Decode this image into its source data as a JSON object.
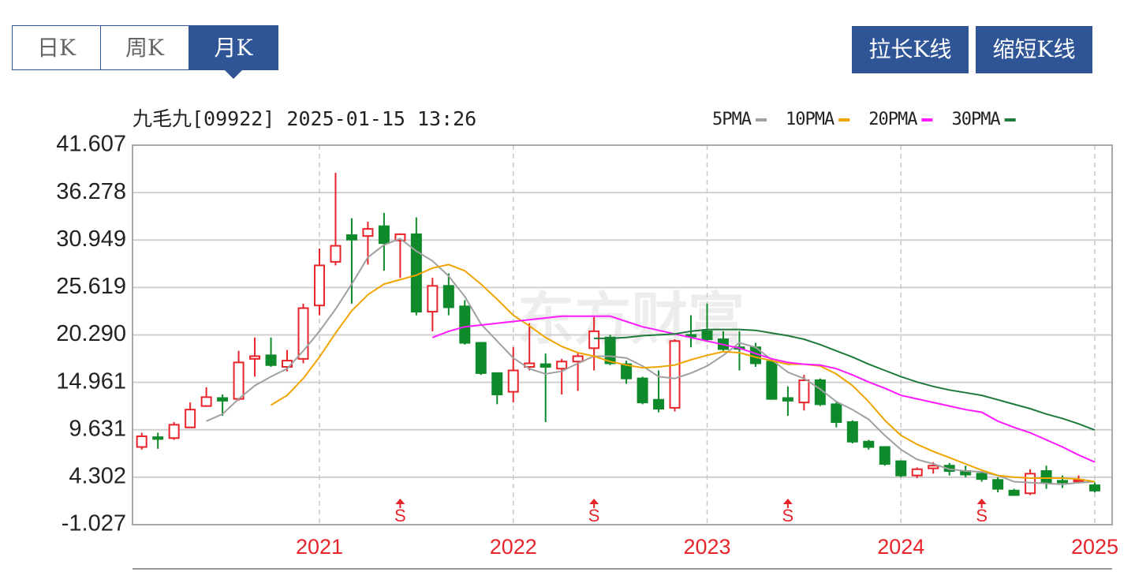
{
  "tabs": [
    "日K",
    "周K",
    "月K"
  ],
  "active_tab": 2,
  "buttons": [
    "拉长K线",
    "缩短K线"
  ],
  "chart_data": {
    "type": "candlestick",
    "title": "九毛九[09922] 2025-01-15 13:26",
    "watermark": "东方财富",
    "categories": [
      null,
      null,
      null,
      null,
      null,
      null,
      null,
      null,
      null,
      null,
      null,
      "2021",
      null,
      null,
      null,
      null,
      null,
      null,
      null,
      null,
      null,
      null,
      null,
      "2022",
      null,
      null,
      null,
      null,
      null,
      null,
      null,
      null,
      null,
      null,
      null,
      "2023",
      null,
      null,
      null,
      null,
      null,
      null,
      null,
      null,
      null,
      null,
      null,
      "2024",
      null,
      null,
      null,
      null,
      null,
      null,
      null,
      null,
      null,
      null,
      null,
      "2025"
    ],
    "open": [
      7.7,
      8.8,
      8.7,
      9.9,
      12.3,
      13.2,
      13.1,
      17.6,
      18.0,
      16.7,
      17.6,
      23.6,
      28.5,
      31.5,
      31.4,
      32.5,
      30.9,
      31.6,
      22.9,
      25.8,
      23.5,
      19.4,
      16.0,
      13.9,
      16.7,
      17.0,
      16.5,
      17.3,
      18.8,
      20.0,
      17.0,
      15.4,
      13.0,
      12.1,
      20.3,
      20.7,
      19.8,
      18.9,
      18.9,
      17.3,
      13.2,
      12.7,
      15.2,
      12.5,
      10.5,
      8.3,
      7.7,
      6.1,
      4.5,
      5.3,
      5.6,
      5.0,
      4.7,
      4.0,
      2.8,
      2.5,
      5.0,
      3.9,
      3.9,
      3.4
    ],
    "high": [
      9.3,
      9.3,
      10.5,
      12.7,
      14.4,
      13.6,
      18.5,
      20.0,
      20.0,
      18.6,
      23.8,
      30.0,
      38.5,
      33.4,
      33.0,
      34.0,
      31.7,
      33.5,
      26.7,
      27.2,
      24.2,
      19.5,
      16.0,
      18.9,
      21.6,
      18.2,
      17.6,
      18.2,
      22.3,
      20.3,
      17.4,
      15.6,
      16.3,
      19.8,
      22.5,
      23.8,
      20.7,
      20.7,
      19.4,
      17.5,
      14.5,
      15.8,
      15.4,
      12.9,
      10.7,
      8.5,
      7.8,
      6.2,
      5.4,
      6.0,
      5.9,
      5.6,
      4.9,
      4.3,
      3.0,
      5.2,
      5.6,
      4.5,
      4.5,
      3.7
    ],
    "low": [
      7.4,
      7.5,
      8.5,
      9.9,
      12.2,
      11.2,
      12.9,
      15.6,
      16.7,
      16.2,
      17.1,
      22.5,
      28.1,
      23.8,
      28.2,
      27.5,
      26.7,
      22.5,
      20.7,
      22.5,
      19.2,
      15.8,
      12.5,
      12.7,
      16.3,
      10.5,
      13.6,
      14.0,
      16.3,
      16.9,
      14.8,
      12.5,
      11.6,
      11.7,
      18.9,
      19.6,
      18.5,
      16.3,
      16.7,
      13.0,
      11.2,
      11.8,
      12.3,
      9.9,
      8.1,
      7.4,
      5.6,
      4.3,
      4.2,
      4.7,
      4.5,
      4.3,
      3.8,
      2.6,
      2.2,
      2.3,
      3.0,
      3.1,
      3.6,
      2.6
    ],
    "close": [
      8.9,
      8.6,
      10.2,
      11.9,
      13.3,
      12.9,
      17.2,
      17.9,
      16.9,
      17.4,
      23.3,
      28.1,
      30.3,
      31.0,
      32.2,
      30.6,
      31.6,
      22.9,
      25.8,
      23.4,
      19.4,
      16.0,
      13.6,
      16.3,
      17.1,
      16.7,
      17.3,
      17.9,
      20.7,
      17.1,
      15.4,
      12.7,
      12.0,
      19.6,
      20.1,
      19.8,
      18.7,
      18.8,
      17.1,
      13.1,
      12.9,
      15.2,
      12.5,
      10.5,
      8.3,
      7.7,
      5.8,
      4.5,
      5.2,
      5.6,
      5.0,
      4.6,
      4.1,
      3.0,
      2.3,
      4.7,
      3.7,
      3.8,
      4.0,
      2.8
    ],
    "up_color": "#e8242b",
    "down_color": "#0e8a2a",
    "series": [
      {
        "name": "5PMA",
        "color": "#a0a0a0",
        "values": [
          null,
          null,
          null,
          null,
          10.6,
          11.4,
          13.1,
          14.6,
          15.6,
          16.5,
          18.5,
          20.7,
          23.2,
          26.0,
          29.0,
          30.4,
          31.1,
          29.7,
          28.6,
          26.9,
          24.6,
          21.5,
          19.6,
          17.7,
          16.5,
          15.9,
          16.2,
          17.1,
          17.9,
          17.9,
          17.7,
          16.8,
          15.6,
          15.4,
          16.0,
          16.8,
          18.0,
          19.4,
          18.9,
          17.5,
          16.1,
          15.4,
          14.2,
          12.8,
          11.9,
          10.8,
          9.0,
          7.4,
          6.3,
          5.8,
          5.2,
          5.0,
          4.9,
          4.5,
          3.8,
          3.7,
          3.6,
          3.5,
          3.7,
          3.8
        ]
      },
      {
        "name": "10PMA",
        "color": "#f0a400",
        "values": [
          null,
          null,
          null,
          null,
          null,
          null,
          null,
          null,
          12.4,
          13.5,
          15.4,
          17.8,
          20.5,
          23.0,
          24.8,
          26.0,
          26.5,
          27.0,
          27.8,
          28.2,
          27.5,
          26.0,
          24.3,
          22.5,
          21.3,
          20.0,
          19.0,
          18.3,
          17.9,
          17.3,
          16.9,
          16.6,
          16.7,
          16.9,
          17.5,
          18.0,
          18.4,
          18.3,
          17.8,
          17.4,
          17.0,
          17.0,
          16.8,
          15.9,
          14.6,
          12.8,
          10.7,
          9.0,
          8.0,
          7.2,
          6.5,
          5.8,
          5.1,
          4.5,
          4.3,
          4.2,
          4.2,
          4.2,
          4.1,
          3.8
        ]
      },
      {
        "name": "20PMA",
        "color": "#ff1aff",
        "values": [
          null,
          null,
          null,
          null,
          null,
          null,
          null,
          null,
          null,
          null,
          null,
          null,
          null,
          null,
          null,
          null,
          null,
          null,
          20.0,
          20.7,
          21.2,
          21.4,
          21.6,
          21.8,
          22.0,
          22.2,
          22.4,
          22.4,
          22.4,
          22.4,
          21.8,
          21.2,
          20.8,
          20.4,
          20.0,
          19.6,
          19.2,
          18.8,
          18.2,
          17.6,
          17.2,
          17.0,
          16.9,
          16.5,
          15.8,
          15.0,
          14.3,
          13.5,
          13.1,
          12.7,
          12.3,
          11.9,
          11.6,
          10.6,
          9.9,
          9.3,
          8.5,
          7.7,
          6.8,
          6.0
        ]
      },
      {
        "name": "30PMA",
        "color": "#1e7a3c",
        "values": [
          null,
          null,
          null,
          null,
          null,
          null,
          null,
          null,
          null,
          null,
          null,
          null,
          null,
          null,
          null,
          null,
          null,
          null,
          null,
          null,
          null,
          null,
          null,
          null,
          null,
          null,
          null,
          null,
          19.9,
          19.9,
          20.0,
          20.2,
          20.3,
          20.4,
          20.7,
          20.9,
          20.9,
          20.9,
          20.8,
          20.5,
          20.2,
          19.8,
          19.2,
          18.5,
          17.8,
          17.0,
          16.3,
          15.6,
          15.0,
          14.5,
          14.1,
          13.8,
          13.5,
          13.0,
          12.5,
          12.0,
          11.4,
          10.9,
          10.3,
          9.6
        ]
      }
    ],
    "signals": [
      null,
      null,
      null,
      null,
      null,
      null,
      null,
      null,
      null,
      null,
      null,
      null,
      null,
      null,
      null,
      null,
      "S",
      null,
      null,
      null,
      null,
      null,
      null,
      null,
      null,
      null,
      null,
      null,
      "S",
      null,
      null,
      null,
      null,
      null,
      null,
      null,
      null,
      null,
      null,
      null,
      "S",
      null,
      null,
      null,
      null,
      null,
      null,
      null,
      null,
      null,
      null,
      null,
      "S",
      null,
      null,
      null,
      null,
      null,
      null,
      null
    ],
    "ylim": [
      -1.027,
      41.607
    ],
    "yticks": [
      41.607,
      36.278,
      30.949,
      25.619,
      {
        "value": 20.29,
        "label": "20.290"
      },
      14.961,
      9.631,
      4.302,
      -1.027
    ],
    "grid": true
  }
}
